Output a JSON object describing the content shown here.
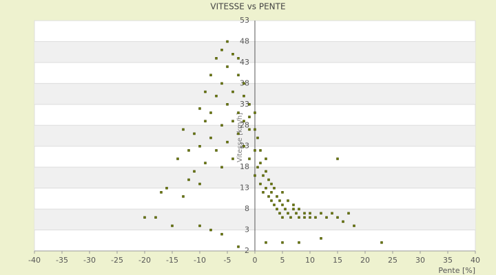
{
  "chart_data": {
    "type": "scatter",
    "title": "VITESSE vs PENTE",
    "x_label": "Pente [%]",
    "y_label": "Vitesse [km/h]",
    "color": "#6b7a00",
    "x": [
      -18,
      -17,
      -16,
      -15,
      -14,
      -13,
      -13,
      -12,
      -12,
      -11,
      -11,
      -10,
      -10,
      -10,
      -9,
      -9,
      -9,
      -8,
      -8,
      -8,
      -7,
      -7,
      -7,
      -6,
      -6,
      -6,
      -6,
      -5,
      -5,
      -5,
      -5,
      -4,
      -4,
      -4,
      -4,
      -3,
      -3,
      -3,
      -3,
      -2,
      -2,
      -2,
      -2,
      -1,
      -1,
      -1,
      -1,
      0,
      0,
      0,
      0,
      0.5,
      0.5,
      1,
      1,
      1,
      1.5,
      1.5,
      2,
      2,
      2,
      2.5,
      2.5,
      3,
      3,
      3,
      3.5,
      3.5,
      4,
      4,
      4.5,
      4.5,
      5,
      5,
      5,
      5.5,
      6,
      6,
      6.5,
      7,
      7,
      7.5,
      8,
      8,
      9,
      9,
      10,
      10,
      11,
      12,
      13,
      14,
      15,
      15,
      16,
      17,
      18,
      23,
      -3,
      2,
      5,
      8,
      12,
      -6,
      -10,
      -20,
      -8
    ],
    "values": [
      6,
      12,
      13,
      4,
      20,
      27,
      11,
      15,
      22,
      17,
      26,
      23,
      32,
      14,
      29,
      19,
      36,
      25,
      40,
      31,
      22,
      44,
      35,
      18,
      46,
      28,
      38,
      48,
      33,
      24,
      42,
      45,
      36,
      29,
      20,
      40,
      31,
      26,
      44,
      35,
      29,
      38,
      23,
      33,
      27,
      30,
      20,
      31,
      27,
      22,
      16,
      25,
      18,
      22,
      14,
      19,
      16,
      12,
      20,
      13,
      17,
      11,
      15,
      14,
      10,
      12,
      9,
      13,
      11,
      8,
      10,
      7,
      9,
      12,
      6,
      8,
      10,
      7,
      6,
      8,
      9,
      7,
      6,
      8,
      7,
      6,
      7,
      6,
      6,
      7,
      6,
      7,
      6,
      20,
      5,
      7,
      4,
      0,
      -1,
      0,
      0,
      0,
      1,
      2,
      4,
      6,
      3
    ],
    "xlim": [
      -40,
      40
    ],
    "xticks": [
      -40,
      -35,
      -30,
      -25,
      -20,
      -15,
      -10,
      -5,
      0,
      5,
      10,
      15,
      20,
      25,
      30,
      35,
      40
    ],
    "ylim": [
      -2,
      53
    ],
    "yticks": [
      53,
      48,
      43,
      38,
      33,
      28,
      23,
      18,
      13,
      8,
      3,
      -2
    ],
    "grid": true
  }
}
